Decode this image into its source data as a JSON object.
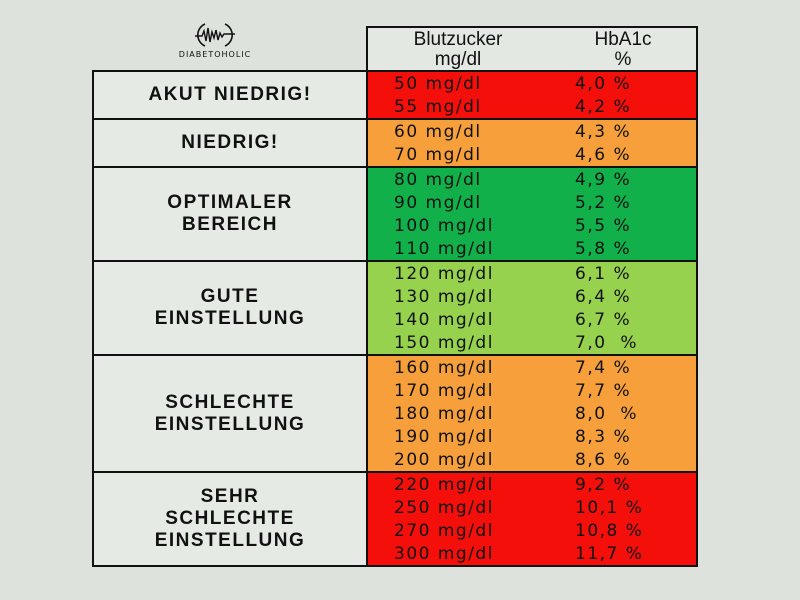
{
  "logo": {
    "text": "DIABETOHOLIC"
  },
  "header": {
    "col1_line1": "Blutzucker",
    "col1_line2": "mg/dl",
    "col2_line1": "HbA1c",
    "col2_line2": "%"
  },
  "groups": [
    {
      "label": "AKUT NIEDRIG!",
      "color": "#f40f0a",
      "rows": [
        {
          "v": "50 mg/dl",
          "h": "4,0 %"
        },
        {
          "v": "55 mg/dl",
          "h": "4,2 %"
        }
      ]
    },
    {
      "label": "NIEDRIG!",
      "color": "#f7a03b",
      "rows": [
        {
          "v": "60 mg/dl",
          "h": "4,3 %"
        },
        {
          "v": "70 mg/dl",
          "h": "4,6 %"
        }
      ]
    },
    {
      "label": "OPTIMALER\nBEREICH",
      "color": "#11b04a",
      "rows": [
        {
          "v": "80 mg/dl",
          "h": "4,9 %"
        },
        {
          "v": "90 mg/dl",
          "h": "5,2 %"
        },
        {
          "v": "100 mg/dl",
          "h": "5,5 %"
        },
        {
          "v": "110 mg/dl",
          "h": "5,8 %"
        }
      ]
    },
    {
      "label": "GUTE\nEINSTELLUNG",
      "color": "#96d24e",
      "rows": [
        {
          "v": "120 mg/dl",
          "h": "6,1 %"
        },
        {
          "v": "130 mg/dl",
          "h": "6,4 %"
        },
        {
          "v": "140 mg/dl",
          "h": "6,7 %"
        },
        {
          "v": "150 mg/dl",
          "h": "7,0  %"
        }
      ]
    },
    {
      "label": "SCHLECHTE\nEINSTELLUNG",
      "color": "#f7a03b",
      "rows": [
        {
          "v": "160 mg/dl",
          "h": "7,4 %"
        },
        {
          "v": "170 mg/dl",
          "h": "7,7 %"
        },
        {
          "v": "180 mg/dl",
          "h": "8,0  %"
        },
        {
          "v": "190 mg/dl",
          "h": "8,3 %"
        },
        {
          "v": "200 mg/dl",
          "h": "8,6 %"
        }
      ]
    },
    {
      "label": "SEHR\nSCHLECHTE\nEINSTELLUNG",
      "color": "#f40f0a",
      "rows": [
        {
          "v": "220 mg/dl",
          "h": "9,2 %"
        },
        {
          "v": "250 mg/dl",
          "h": "10,1 %"
        },
        {
          "v": "270 mg/dl",
          "h": "10,8 %"
        },
        {
          "v": "300 mg/dl",
          "h": "11,7 %"
        }
      ]
    }
  ]
}
